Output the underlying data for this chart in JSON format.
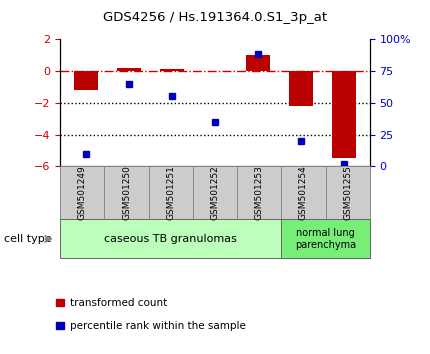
{
  "title": "GDS4256 / Hs.191364.0.S1_3p_at",
  "samples": [
    "GSM501249",
    "GSM501250",
    "GSM501251",
    "GSM501252",
    "GSM501253",
    "GSM501254",
    "GSM501255"
  ],
  "red_values": [
    -1.2,
    0.2,
    0.12,
    -0.02,
    1.0,
    -2.2,
    -5.5
  ],
  "blue_values": [
    10,
    65,
    55,
    35,
    88,
    20,
    2
  ],
  "ylim_left": [
    -6,
    2
  ],
  "ylim_right": [
    0,
    100
  ],
  "yticks_left": [
    -6,
    -4,
    -2,
    0,
    2
  ],
  "yticks_right": [
    0,
    25,
    50,
    75,
    100
  ],
  "ytick_labels_right": [
    "0",
    "25",
    "50",
    "75",
    "100%"
  ],
  "red_color": "#bb0000",
  "blue_color": "#0000bb",
  "dashed_line_color": "#cc0000",
  "dotted_line_color": "#000000",
  "bar_width": 0.55,
  "caseous_count": 5,
  "cell_group_labels": [
    "caseous TB granulomas",
    "normal lung\nparenchyma"
  ],
  "cell_group_colors": [
    "#bbffbb",
    "#77ee77"
  ],
  "cell_type_label": "cell type",
  "legend_red": "transformed count",
  "legend_blue": "percentile rank within the sample",
  "bg_color": "#ffffff",
  "plot_bg": "#ffffff",
  "tick_label_color_left": "#cc0000",
  "tick_label_color_right": "#0000cc",
  "gray_box_color": "#cccccc",
  "gray_box_edge": "#888888"
}
